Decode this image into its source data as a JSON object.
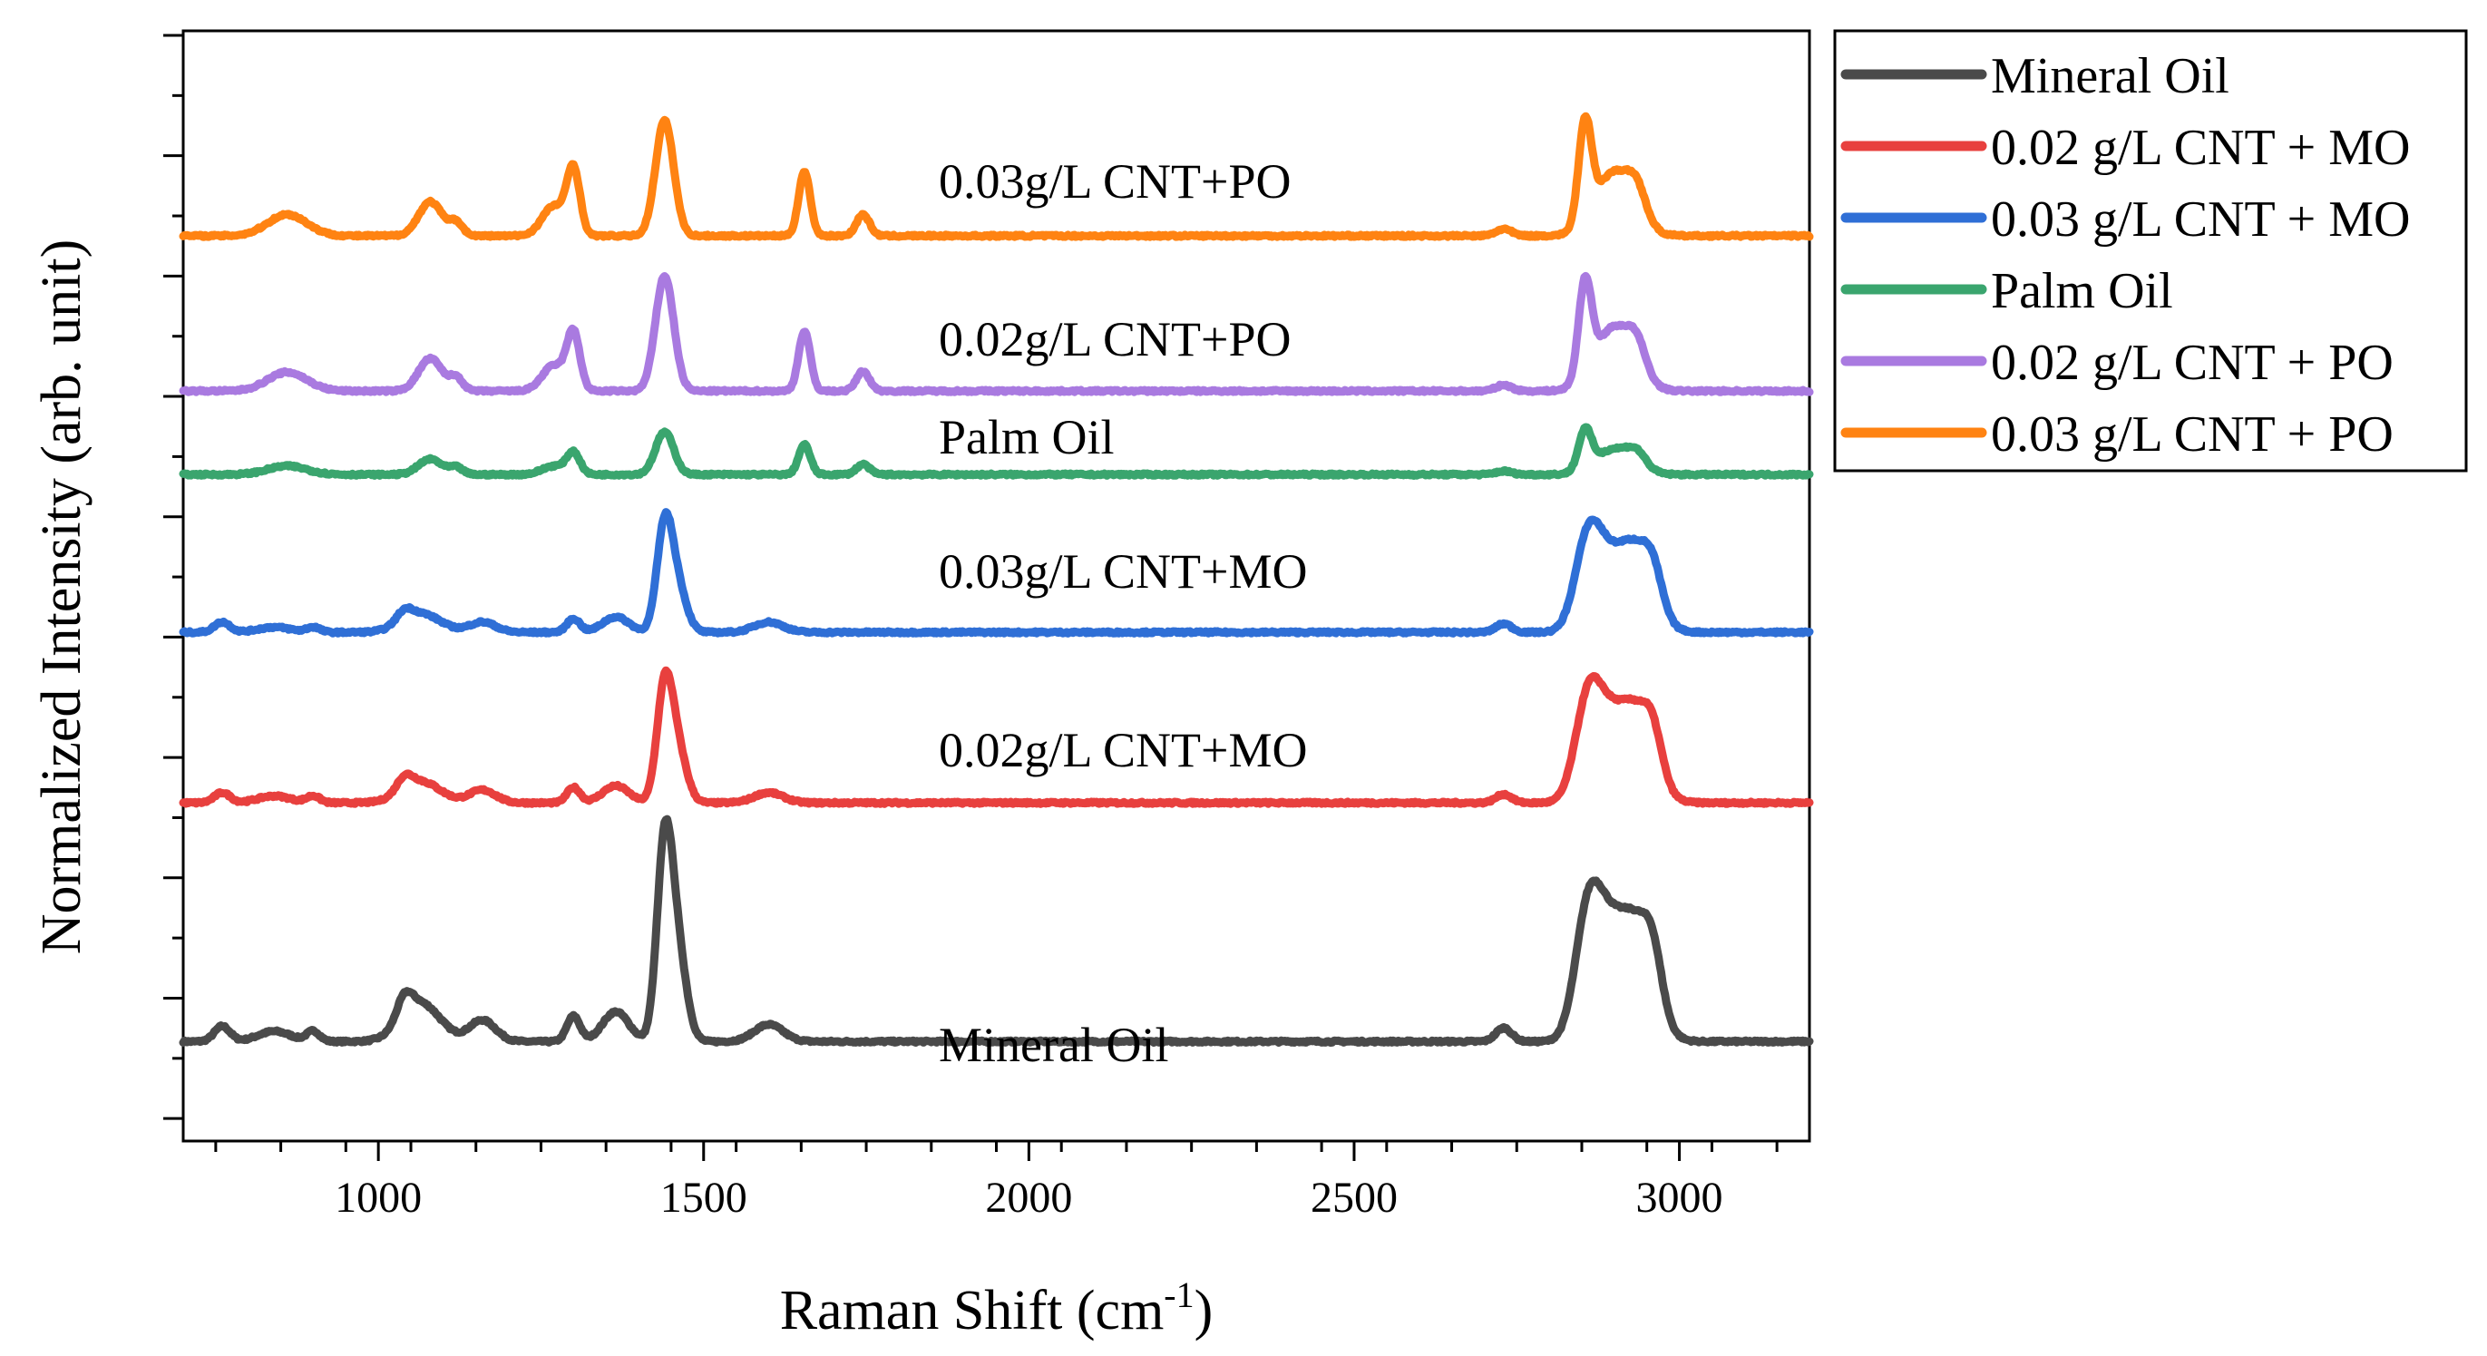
{
  "chart_data": {
    "type": "line",
    "xlabel": "Raman Shift (cm",
    "xlabel_sup": "-1",
    "xlabel_end": ")",
    "ylabel": "Normalized Intensity (arb. unit)",
    "xlim": [
      700,
      3200
    ],
    "ylim": [
      0,
      1
    ],
    "x_ticks": [
      "1000",
      "1500",
      "2000",
      "2500",
      "3000"
    ],
    "x_tick_values": [
      1000,
      1500,
      2000,
      2500,
      3000
    ],
    "y_tick_labels_shown": false,
    "legend_position": "outside-top-right",
    "series": [
      {
        "name": "Mineral Oil",
        "color": "#4a4a4a",
        "baseline": 0.055,
        "label": "Mineral Oil",
        "peaks": [
          [
            760,
            0.018,
            12
          ],
          [
            840,
            0.012,
            25
          ],
          [
            900,
            0.012,
            10
          ],
          [
            1040,
            0.025,
            12
          ],
          [
            1065,
            0.045,
            30
          ],
          [
            1160,
            0.025,
            20
          ],
          [
            1300,
            0.03,
            10
          ],
          [
            1365,
            0.035,
            20
          ],
          [
            1440,
            0.22,
            12
          ],
          [
            1460,
            0.1,
            14
          ],
          [
            1600,
            0.02,
            22
          ],
          [
            2730,
            0.016,
            12
          ],
          [
            2860,
            0.15,
            20
          ],
          [
            2890,
            0.07,
            20
          ],
          [
            2930,
            0.14,
            28
          ],
          [
            2960,
            0.05,
            14
          ]
        ]
      },
      {
        "name": "0.02 g/L CNT + MO",
        "color": "#e8403e",
        "baseline": 0.335,
        "label": "0.02g/L CNT+MO",
        "peaks": [
          [
            760,
            0.012,
            12
          ],
          [
            840,
            0.008,
            25
          ],
          [
            900,
            0.008,
            10
          ],
          [
            1040,
            0.015,
            12
          ],
          [
            1065,
            0.025,
            30
          ],
          [
            1160,
            0.015,
            20
          ],
          [
            1300,
            0.018,
            10
          ],
          [
            1365,
            0.02,
            20
          ],
          [
            1440,
            0.13,
            12
          ],
          [
            1460,
            0.06,
            14
          ],
          [
            1600,
            0.012,
            22
          ],
          [
            2730,
            0.01,
            12
          ],
          [
            2860,
            0.12,
            20
          ],
          [
            2890,
            0.05,
            20
          ],
          [
            2930,
            0.11,
            28
          ],
          [
            2960,
            0.04,
            14
          ]
        ]
      },
      {
        "name": "0.03 g/L CNT + MO",
        "color": "#2f6fd6",
        "baseline": 0.535,
        "label": "0.03g/L CNT+MO",
        "peaks": [
          [
            760,
            0.012,
            12
          ],
          [
            840,
            0.006,
            25
          ],
          [
            900,
            0.006,
            10
          ],
          [
            1040,
            0.012,
            12
          ],
          [
            1065,
            0.022,
            30
          ],
          [
            1160,
            0.012,
            20
          ],
          [
            1300,
            0.016,
            10
          ],
          [
            1365,
            0.018,
            20
          ],
          [
            1440,
            0.12,
            12
          ],
          [
            1460,
            0.05,
            14
          ],
          [
            1600,
            0.012,
            22
          ],
          [
            2730,
            0.01,
            12
          ],
          [
            2860,
            0.11,
            20
          ],
          [
            2890,
            0.04,
            20
          ],
          [
            2930,
            0.1,
            28
          ],
          [
            2960,
            0.035,
            14
          ]
        ]
      },
      {
        "name": "Palm Oil",
        "color": "#3aa56e",
        "baseline": 0.72,
        "label": "Palm Oil",
        "peaks": [
          [
            860,
            0.01,
            30
          ],
          [
            1080,
            0.018,
            18
          ],
          [
            1120,
            0.008,
            10
          ],
          [
            1270,
            0.01,
            18
          ],
          [
            1300,
            0.025,
            10
          ],
          [
            1440,
            0.05,
            14
          ],
          [
            1655,
            0.035,
            9
          ],
          [
            1745,
            0.012,
            10
          ],
          [
            2730,
            0.004,
            12
          ],
          [
            2855,
            0.045,
            10
          ],
          [
            2900,
            0.03,
            30
          ],
          [
            2935,
            0.015,
            14
          ]
        ]
      },
      {
        "name": "0.02 g/L CNT + PO",
        "color": "#a97ae0",
        "baseline": 0.818,
        "label": "0.02g/L CNT+PO",
        "peaks": [
          [
            860,
            0.022,
            30
          ],
          [
            1080,
            0.038,
            18
          ],
          [
            1120,
            0.015,
            10
          ],
          [
            1270,
            0.03,
            18
          ],
          [
            1300,
            0.065,
            10
          ],
          [
            1440,
            0.135,
            14
          ],
          [
            1655,
            0.07,
            9
          ],
          [
            1745,
            0.023,
            10
          ],
          [
            2730,
            0.007,
            12
          ],
          [
            2855,
            0.11,
            10
          ],
          [
            2900,
            0.075,
            30
          ],
          [
            2935,
            0.03,
            14
          ]
        ]
      },
      {
        "name": "0.03 g/L CNT + PO",
        "color": "#ff8312",
        "baseline": 1.0,
        "label": "0.03g/L CNT+PO",
        "peaks": [
          [
            860,
            0.025,
            30
          ],
          [
            1080,
            0.04,
            18
          ],
          [
            1120,
            0.015,
            10
          ],
          [
            1270,
            0.035,
            18
          ],
          [
            1300,
            0.075,
            10
          ],
          [
            1440,
            0.135,
            14
          ],
          [
            1655,
            0.075,
            9
          ],
          [
            1745,
            0.025,
            10
          ],
          [
            2730,
            0.008,
            12
          ],
          [
            2855,
            0.115,
            10
          ],
          [
            2900,
            0.075,
            30
          ],
          [
            2935,
            0.03,
            14
          ]
        ]
      }
    ]
  }
}
